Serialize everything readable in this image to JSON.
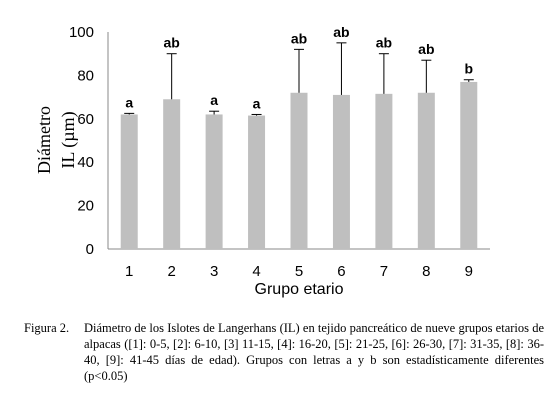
{
  "chart_data": {
    "type": "bar",
    "categories": [
      "1",
      "2",
      "3",
      "4",
      "5",
      "6",
      "7",
      "8",
      "9"
    ],
    "values": [
      62,
      69,
      62,
      61.5,
      72,
      71,
      71.5,
      72,
      77
    ],
    "error_upper": [
      62.5,
      90,
      63.5,
      62,
      92,
      95,
      90,
      87,
      78
    ],
    "significance": [
      "a",
      "ab",
      "a",
      "a",
      "ab",
      "ab",
      "ab",
      "ab",
      "b"
    ],
    "ylabel_line1": "Diámetro",
    "ylabel_line2": "IL (µm)",
    "xlabel": "Grupo etario",
    "ylim": [
      0,
      100
    ],
    "yticks": [
      0,
      20,
      40,
      60,
      80,
      100
    ],
    "bar_color": "#bfbfbf"
  },
  "caption": {
    "label": "Figura 2.",
    "text": "Diámetro de los Islotes de Langerhans (IL) en tejido pancreático de nueve grupos etarios de alpacas ([1]: 0-5, [2]: 6-10, [3] 11-15, [4]: 16-20, [5]: 21-25, [6]: 26-30, [7]: 31-35, [8]: 36-40, [9]: 41-45 días de edad). Grupos con letras a y b son estadísticamente diferentes (p<0.05)"
  }
}
